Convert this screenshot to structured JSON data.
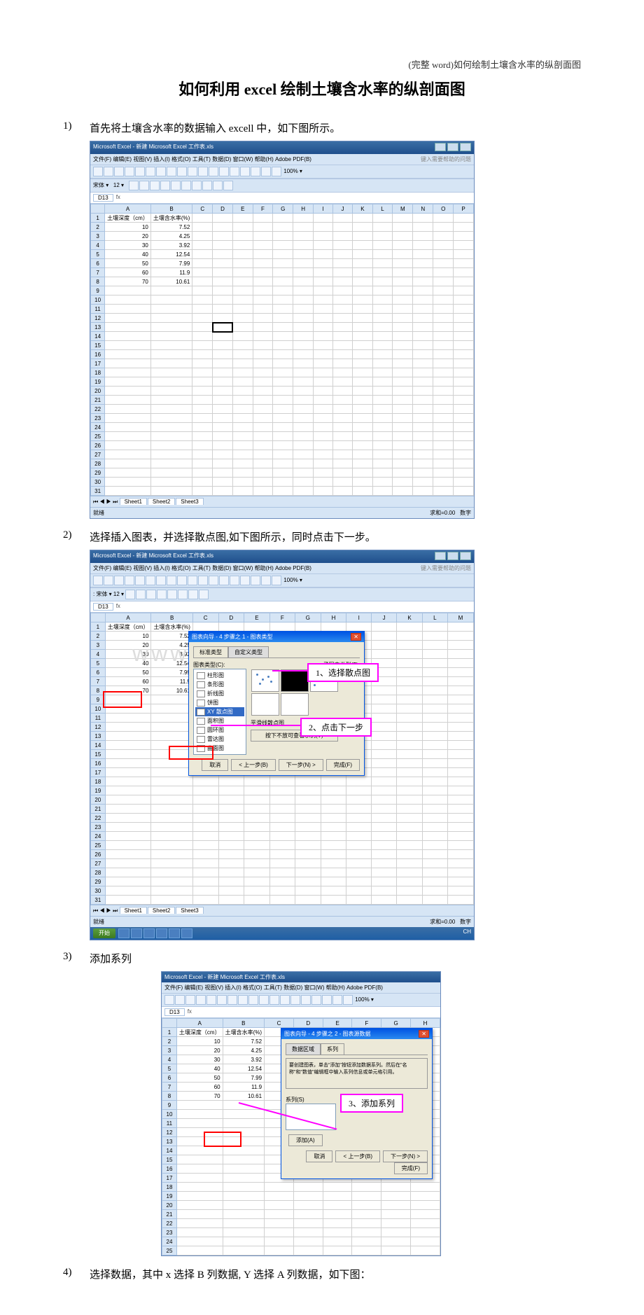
{
  "header": {
    "right_text": "(完整 word)如何绘制土壤含水率的纵剖面图"
  },
  "title": "如何利用 excel 绘制土壤含水率的纵剖面图",
  "steps": {
    "s1": {
      "num": "1)",
      "text": "首先将土壤含水率的数据输入 excell 中，如下图所示。"
    },
    "s2": {
      "num": "2)",
      "text": "选择插入图表，并选择散点图,如下图所示，同时点击下一步。"
    },
    "s3": {
      "num": "3)",
      "text": "添加系列"
    },
    "s4": {
      "num": "4)",
      "text": "选择数据，其中 x 选择 B 列数据, Y 选择 A 列数据，如下图："
    }
  },
  "excel": {
    "window_title": "Microsoft Excel - 新建 Microsoft Excel 工作表.xls",
    "menu_items": [
      "文件(F)",
      "编辑(E)",
      "视图(V)",
      "插入(I)",
      "格式(O)",
      "工具(T)",
      "数据(D)",
      "窗口(W)",
      "帮助(H)",
      "Adobe PDF(B)"
    ],
    "question_hint": "键入需要帮助的问题",
    "font_name": "宋体",
    "font_size": "12",
    "zoom": "100%",
    "namebox1": "D13",
    "namebox2": "D13",
    "namebox3": "D13",
    "cols": [
      "",
      "A",
      "B",
      "C",
      "D",
      "E",
      "F",
      "G",
      "H",
      "I",
      "J",
      "K",
      "L",
      "M",
      "N",
      "O",
      "P"
    ],
    "cols8": [
      "",
      "A",
      "B",
      "C",
      "D",
      "E",
      "F",
      "G",
      "H"
    ],
    "col_a_header": "土壤深度（cm）",
    "col_b_header": "土壤含水率(%)",
    "data_rows": [
      [
        "10",
        "7.52"
      ],
      [
        "20",
        "4.25"
      ],
      [
        "30",
        "3.92"
      ],
      [
        "40",
        "12.54"
      ],
      [
        "50",
        "7.99"
      ],
      [
        "60",
        "11.9"
      ],
      [
        "70",
        "10.61"
      ]
    ],
    "sheets": [
      "Sheet1",
      "Sheet2",
      "Sheet3"
    ],
    "status": "就绪",
    "numlock": "数字",
    "sum_label": "求和=0.00",
    "start_btn": "开始",
    "taskbar_ime": "CH"
  },
  "wizard1": {
    "title": "图表向导 - 4 步骤之 1 - 图表类型",
    "tab1": "标准类型",
    "tab2": "自定义类型",
    "label_type": "图表类型(C):",
    "label_subtype": "子图表类型(T):",
    "types": [
      "柱形图",
      "条形图",
      "折线图",
      "饼图",
      "XY 散点图",
      "面积图",
      "圆环图",
      "雷达图",
      "曲面图"
    ],
    "desc": "平滑线散点图",
    "preview_btn": "按下不放可查看示例(V)",
    "btn_cancel": "取消",
    "btn_back": "< 上一步(B)",
    "btn_next": "下一步(N) >",
    "btn_finish": "完成(F)"
  },
  "wizard2": {
    "title": "图表向导 - 4 步骤之 2 - 图表源数据",
    "tab1": "数据区域",
    "tab2": "系列",
    "hint": "要创建图表，单击\"添加\"按钮添加数据系列。然后在\"名称\"和\"数值\"编辑框中输入系列信息或单元格引用。",
    "series_label": "系列(S)",
    "add_btn": "添加(A)",
    "btn_cancel": "取消",
    "btn_back": "< 上一步(B)",
    "btn_next": "下一步(N) >",
    "btn_finish": "完成(F)"
  },
  "callouts": {
    "c1": "1、选择散点图",
    "c2": "2、点击下一步",
    "c3": "3、添加系列"
  },
  "watermark": "www.zxin.com.cn",
  "styling": {
    "page_bg": "#ffffff",
    "title_fontsize": 22,
    "body_fontsize": 15,
    "callout_border": "#ff00ff",
    "redbox_border": "#ff0000",
    "excel_header_bg": "#d6e5f5",
    "excel_border": "#a9c2e0",
    "dialog_bg": "#ece9d8",
    "dialog_title_bg": "#0054e3",
    "taskbar_bg": "#1f5fa5",
    "start_btn_bg": "#3c7a1f"
  }
}
